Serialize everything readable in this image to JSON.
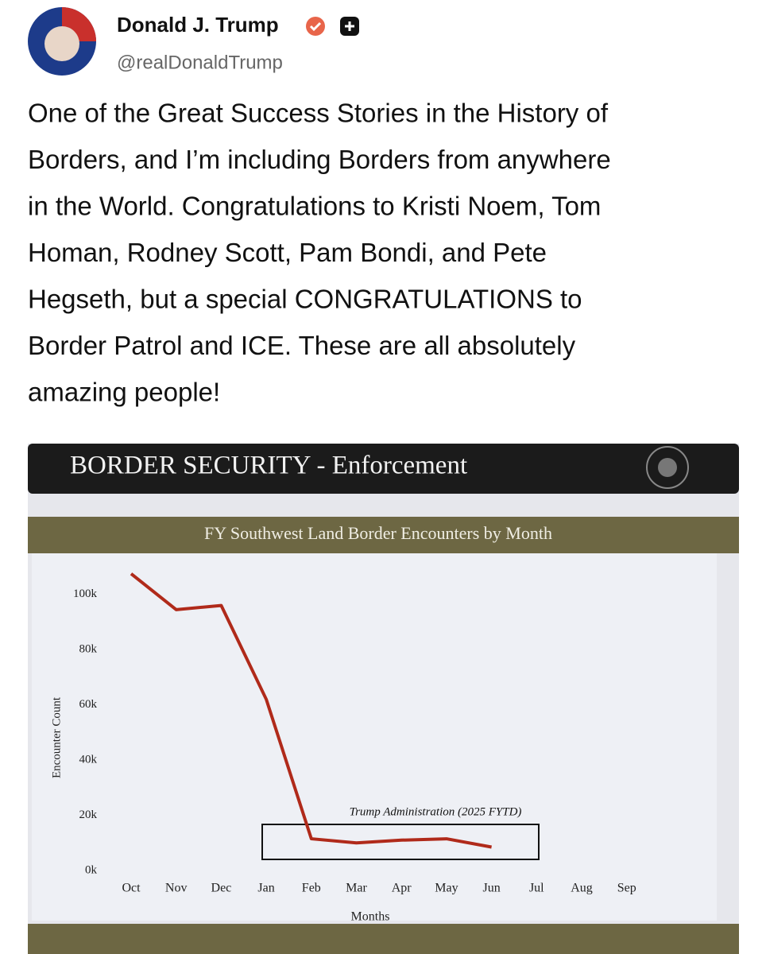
{
  "post": {
    "author": "Donald J. Trump",
    "handle": "@realDonaldTrump",
    "text_lines": [
      "One of the Great Success Stories in the History of",
      "Borders, and I’m including Borders from anywhere",
      "in the World. Congratulations to Kristi Noem, Tom",
      "Homan, Rodney Scott, Pam Bondi, and Pete",
      "Hegseth, but a special CONGRATULATIONS to",
      "Border Patrol and ICE. These are all absolutely",
      "amazing people!"
    ],
    "image_header": "BORDER SECURITY - Enforcement"
  },
  "chart_data": {
    "type": "line",
    "title": "FY Southwest Land Border Encounters by Month",
    "x_label": "Months",
    "y_label": "Encounter Count",
    "annotation": "Trump Administration (2025 FYTD)",
    "categories": [
      "Oct",
      "Nov",
      "Dec",
      "Jan",
      "Feb",
      "Mar",
      "Apr",
      "May",
      "Jun",
      "Jul",
      "Aug",
      "Sep"
    ],
    "series": [
      {
        "name": "Encounters",
        "color": "#b02a1a",
        "values": [
          107500,
          94500,
          96000,
          62000,
          11500,
          10000,
          11000,
          11500,
          8500,
          null,
          null,
          null
        ]
      }
    ],
    "ylim": [
      0,
      110000
    ],
    "yticks": [
      {
        "value": 0,
        "label": "0k"
      },
      {
        "value": 20000,
        "label": "20k"
      },
      {
        "value": 40000,
        "label": "40k"
      },
      {
        "value": 60000,
        "label": "60k"
      },
      {
        "value": 80000,
        "label": "80k"
      },
      {
        "value": 100000,
        "label": "100k"
      }
    ]
  }
}
